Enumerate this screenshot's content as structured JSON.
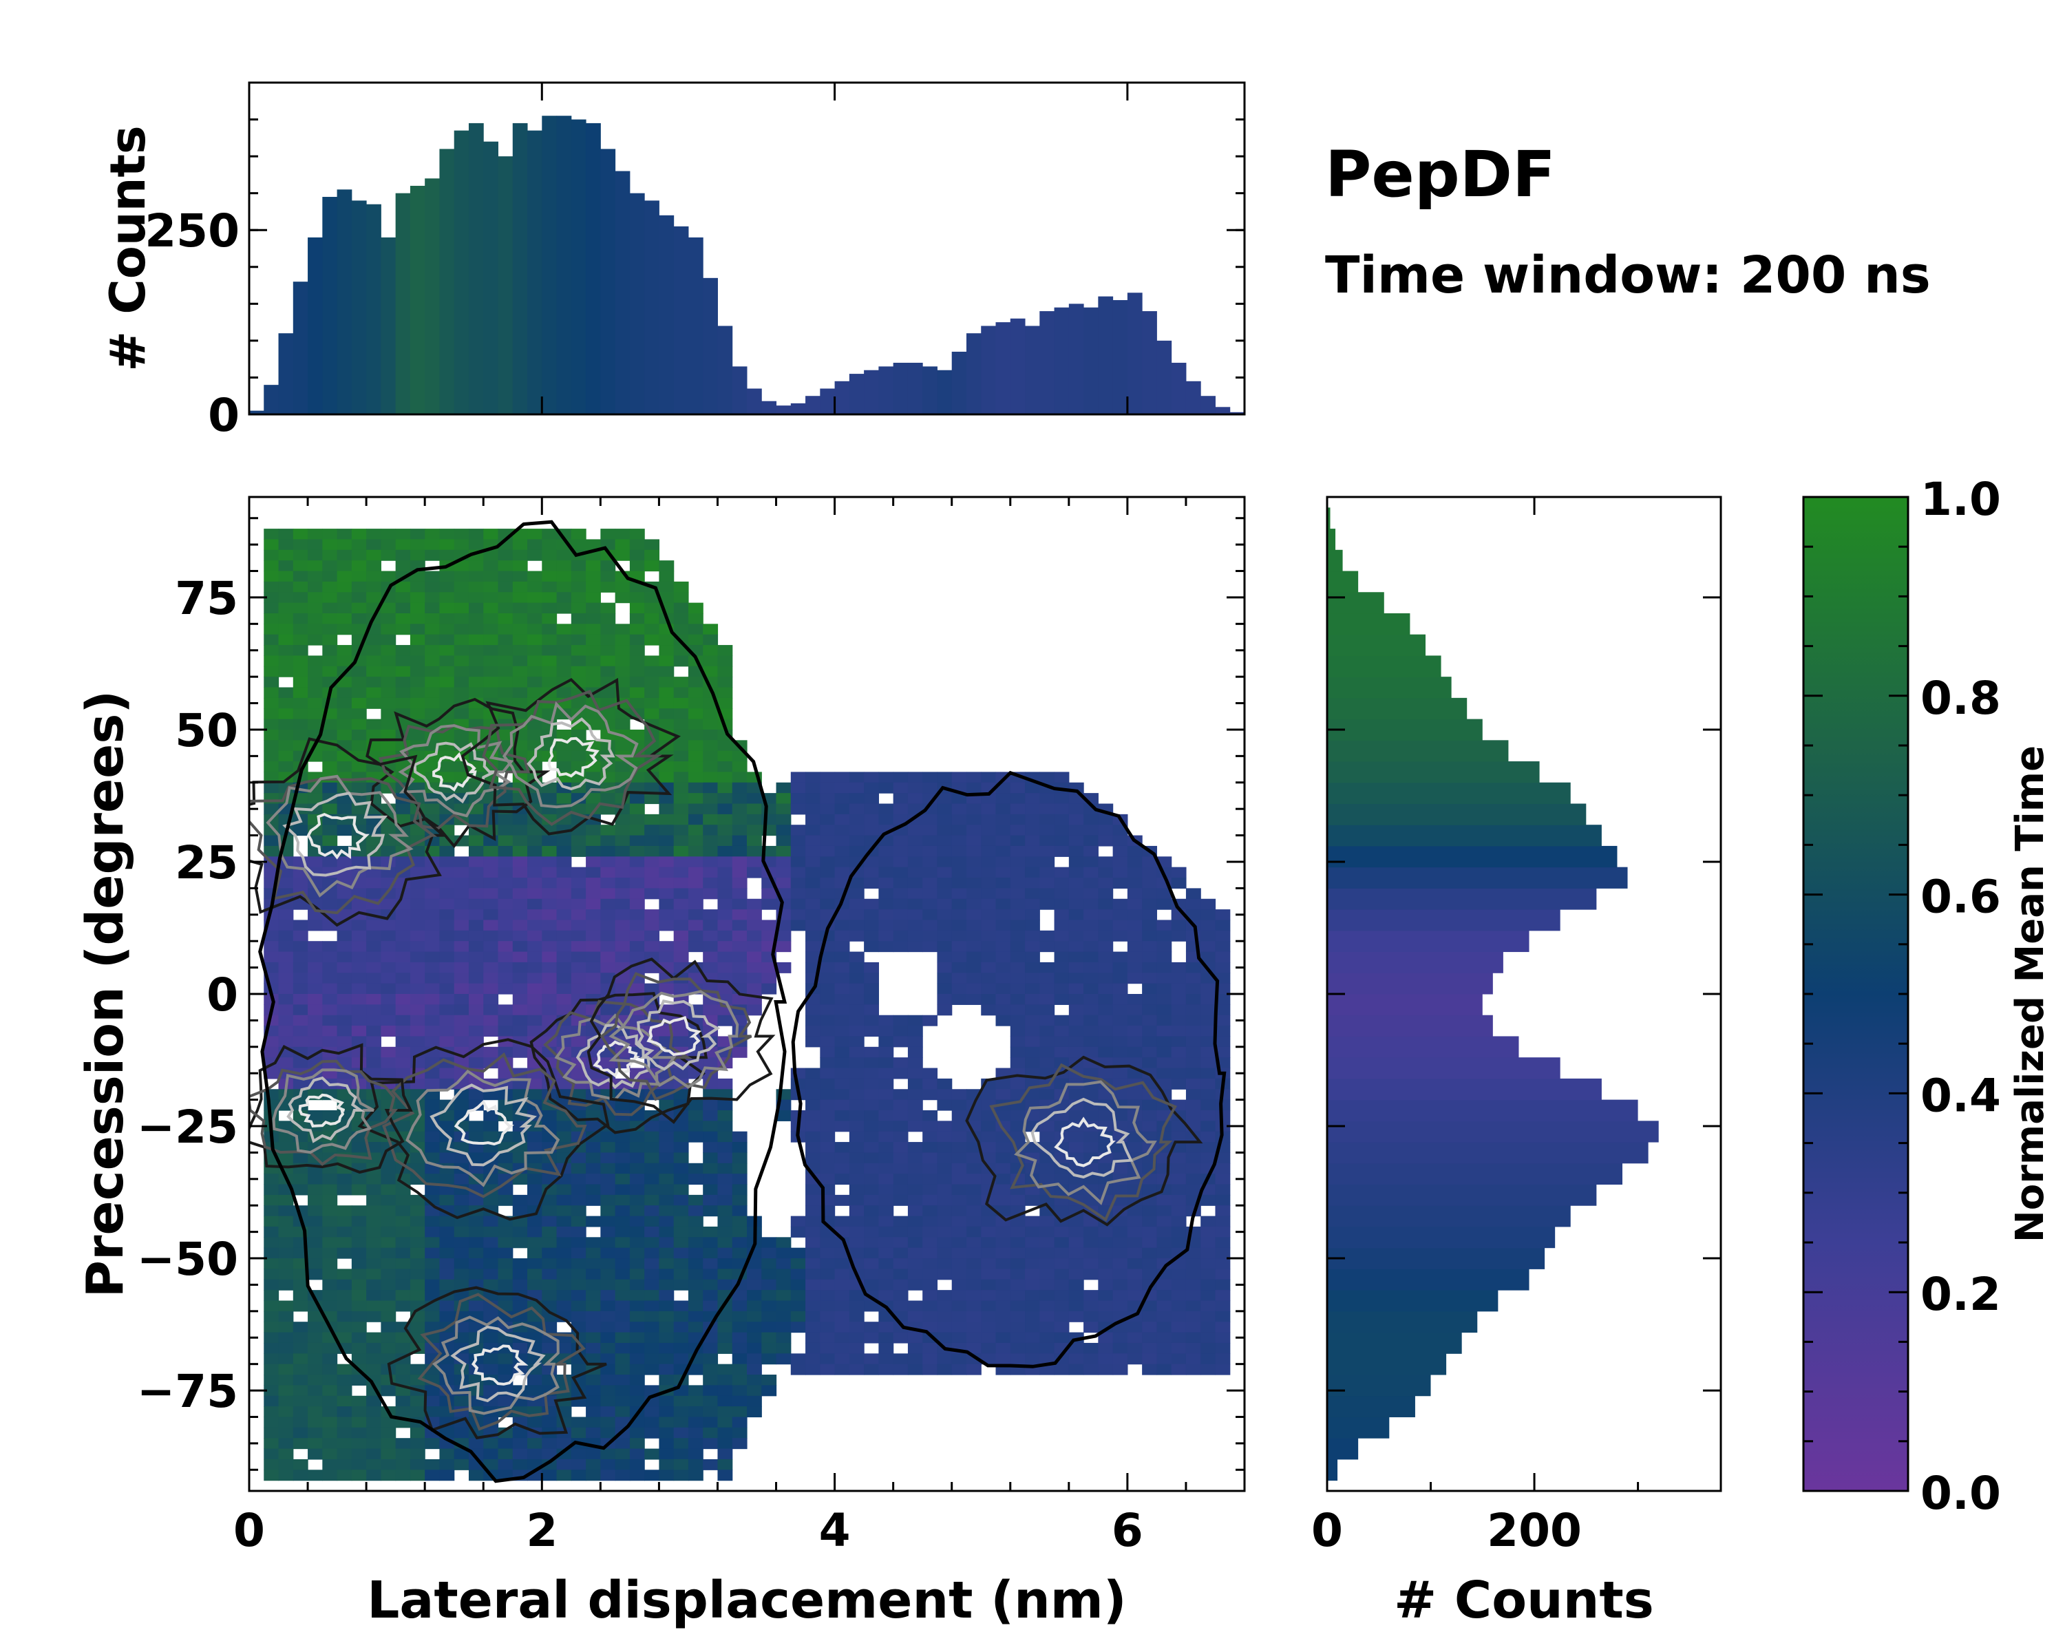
{
  "figure": {
    "title": "PepDF",
    "subtitle": "Time window: 200 ns"
  },
  "colormap": {
    "stops": [
      {
        "t": 0.0,
        "color": "#6a369d"
      },
      {
        "t": 0.25,
        "color": "#3d3f96"
      },
      {
        "t": 0.5,
        "color": "#0d3f72"
      },
      {
        "t": 0.75,
        "color": "#1e6448"
      },
      {
        "t": 1.0,
        "color": "#228b22"
      }
    ]
  },
  "chart_data": [
    {
      "id": "main_map",
      "type": "heatmap",
      "title": "",
      "xlabel": "Lateral displacement (nm)",
      "ylabel": "Precession (degrees)",
      "xlim": [
        0,
        6.8
      ],
      "ylim": [
        -94,
        94
      ],
      "xticks": [
        0,
        2,
        4,
        6
      ],
      "yticks": [
        -75,
        -50,
        -25,
        0,
        25,
        50,
        75
      ],
      "tick_labels_x": [
        "0",
        "2",
        "4",
        "6"
      ],
      "tick_labels_y": [
        "−75",
        "−50",
        "−25",
        "0",
        "25",
        "50",
        "75"
      ],
      "regions": [
        {
          "name": "upper-green lobe",
          "x_range": [
            0.1,
            3.4
          ],
          "y_range": [
            30,
            90
          ],
          "mean_time": 0.9
        },
        {
          "name": "purple middle band",
          "x_range": [
            0.1,
            3.7
          ],
          "y_range": [
            -20,
            30
          ],
          "mean_time": 0.2
        },
        {
          "name": "lower teal lobe",
          "x_range": [
            0.1,
            3.6
          ],
          "y_range": [
            -90,
            -20
          ],
          "mean_time": 0.6
        },
        {
          "name": "right blue cluster",
          "x_range": [
            3.7,
            6.7
          ],
          "y_range": [
            -70,
            40
          ],
          "mean_time": 0.35
        }
      ],
      "density_peaks": [
        {
          "x": 1.4,
          "y": 42
        },
        {
          "x": 2.2,
          "y": 45
        },
        {
          "x": 0.6,
          "y": 30
        },
        {
          "x": 2.5,
          "y": -12
        },
        {
          "x": 2.9,
          "y": -8
        },
        {
          "x": 1.6,
          "y": -25
        },
        {
          "x": 0.5,
          "y": -22
        },
        {
          "x": 1.7,
          "y": -70
        },
        {
          "x": 5.7,
          "y": -28
        }
      ]
    },
    {
      "id": "top_histogram",
      "type": "bar",
      "xlabel": "",
      "ylabel": "# Counts",
      "xlim": [
        0,
        6.8
      ],
      "ylim": [
        0,
        450
      ],
      "yticks": [
        0,
        250
      ],
      "tick_labels_y": [
        "0",
        "250"
      ],
      "x": [
        0.0,
        0.1,
        0.2,
        0.3,
        0.4,
        0.5,
        0.6,
        0.7,
        0.8,
        0.9,
        1.0,
        1.1,
        1.2,
        1.3,
        1.4,
        1.5,
        1.6,
        1.7,
        1.8,
        1.9,
        2.0,
        2.1,
        2.2,
        2.3,
        2.4,
        2.5,
        2.6,
        2.7,
        2.8,
        2.9,
        3.0,
        3.1,
        3.2,
        3.3,
        3.4,
        3.5,
        3.6,
        3.7,
        3.8,
        3.9,
        4.0,
        4.1,
        4.2,
        4.3,
        4.4,
        4.5,
        4.6,
        4.7,
        4.8,
        4.9,
        5.0,
        5.1,
        5.2,
        5.3,
        5.4,
        5.5,
        5.6,
        5.7,
        5.8,
        5.9,
        6.0,
        6.1,
        6.2,
        6.3,
        6.4,
        6.5,
        6.6,
        6.7
      ],
      "values": [
        5,
        40,
        110,
        180,
        240,
        295,
        305,
        290,
        285,
        240,
        300,
        310,
        320,
        360,
        385,
        395,
        370,
        350,
        395,
        385,
        405,
        405,
        400,
        395,
        360,
        330,
        300,
        290,
        270,
        255,
        240,
        185,
        120,
        65,
        35,
        18,
        12,
        15,
        25,
        35,
        45,
        55,
        60,
        65,
        70,
        70,
        65,
        60,
        85,
        110,
        120,
        125,
        130,
        120,
        140,
        145,
        150,
        145,
        160,
        155,
        165,
        140,
        100,
        70,
        45,
        25,
        10,
        3
      ],
      "bar_color_metric": [
        0.45,
        0.45,
        0.46,
        0.47,
        0.5,
        0.52,
        0.54,
        0.56,
        0.58,
        0.62,
        0.7,
        0.74,
        0.72,
        0.68,
        0.65,
        0.63,
        0.62,
        0.64,
        0.6,
        0.57,
        0.55,
        0.53,
        0.52,
        0.5,
        0.48,
        0.46,
        0.45,
        0.44,
        0.43,
        0.42,
        0.42,
        0.41,
        0.4,
        0.38,
        0.36,
        0.35,
        0.34,
        0.34,
        0.34,
        0.35,
        0.35,
        0.36,
        0.36,
        0.37,
        0.38,
        0.38,
        0.4,
        0.42,
        0.4,
        0.38,
        0.36,
        0.35,
        0.35,
        0.36,
        0.36,
        0.37,
        0.37,
        0.38,
        0.38,
        0.38,
        0.37,
        0.36,
        0.36,
        0.35,
        0.35,
        0.35,
        0.34,
        0.34
      ]
    },
    {
      "id": "right_histogram",
      "type": "bar",
      "orientation": "horizontal",
      "xlabel": "# Counts",
      "ylabel": "",
      "xlim": [
        0,
        380
      ],
      "ylim": [
        -94,
        94
      ],
      "xticks": [
        0,
        200
      ],
      "tick_labels_x": [
        "0",
        "200"
      ],
      "y": [
        -90,
        -86,
        -82,
        -78,
        -74,
        -70,
        -66,
        -62,
        -58,
        -54,
        -50,
        -46,
        -42,
        -38,
        -34,
        -30,
        -26,
        -22,
        -18,
        -14,
        -10,
        -6,
        -2,
        2,
        6,
        10,
        14,
        18,
        22,
        26,
        30,
        34,
        38,
        42,
        46,
        50,
        54,
        58,
        62,
        66,
        70,
        74,
        78,
        82,
        86,
        90
      ],
      "values": [
        10,
        30,
        60,
        85,
        100,
        115,
        130,
        145,
        165,
        195,
        210,
        220,
        235,
        260,
        285,
        310,
        320,
        300,
        265,
        225,
        185,
        160,
        150,
        160,
        170,
        195,
        225,
        260,
        290,
        280,
        265,
        250,
        235,
        205,
        175,
        150,
        135,
        120,
        110,
        95,
        80,
        55,
        30,
        15,
        8,
        3
      ],
      "bar_color_metric": [
        0.5,
        0.5,
        0.52,
        0.53,
        0.54,
        0.55,
        0.55,
        0.54,
        0.52,
        0.48,
        0.45,
        0.42,
        0.4,
        0.38,
        0.36,
        0.34,
        0.32,
        0.3,
        0.27,
        0.24,
        0.22,
        0.2,
        0.18,
        0.2,
        0.22,
        0.25,
        0.3,
        0.35,
        0.42,
        0.5,
        0.58,
        0.64,
        0.68,
        0.72,
        0.75,
        0.78,
        0.8,
        0.82,
        0.84,
        0.85,
        0.86,
        0.86,
        0.87,
        0.87,
        0.88,
        0.88
      ]
    },
    {
      "id": "colorbar",
      "type": "colorbar",
      "label": "Normalized Mean Time",
      "range": [
        0.0,
        1.0
      ],
      "ticks": [
        0.0,
        0.2,
        0.4,
        0.6,
        0.8,
        1.0
      ],
      "tick_labels": [
        "0.0",
        "0.2",
        "0.4",
        "0.6",
        "0.8",
        "1.0"
      ]
    }
  ]
}
